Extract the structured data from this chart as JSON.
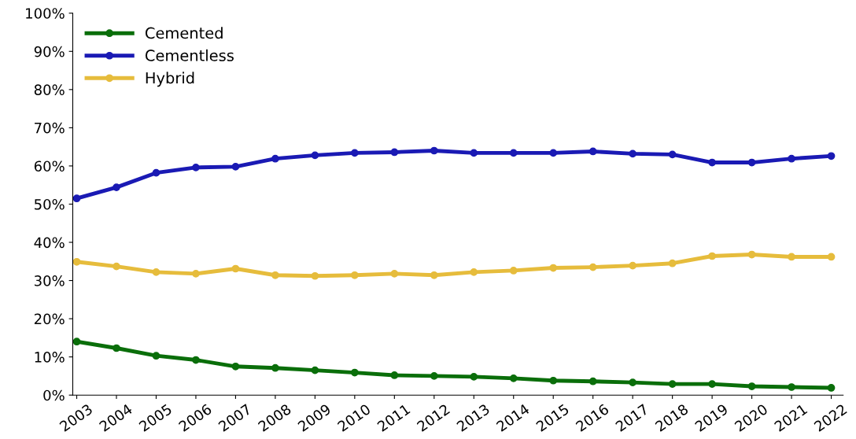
{
  "chart_data": {
    "type": "line",
    "categories": [
      "2003",
      "2004",
      "2005",
      "2006",
      "2007",
      "2008",
      "2009",
      "2010",
      "2011",
      "2012",
      "2013",
      "2014",
      "2015",
      "2016",
      "2017",
      "2018",
      "2019",
      "2020",
      "2021",
      "2022"
    ],
    "series": [
      {
        "name": "Cemented",
        "color": "#0a6e0a",
        "values": [
          14,
          12.3,
          10.3,
          9.2,
          7.5,
          7.1,
          6.5,
          5.9,
          5.2,
          5.0,
          4.8,
          4.4,
          3.8,
          3.6,
          3.3,
          2.9,
          2.9,
          2.3,
          2.1,
          1.9
        ]
      },
      {
        "name": "Cementless",
        "color": "#1a1ab4",
        "values": [
          51.5,
          54.4,
          58.2,
          59.6,
          59.8,
          61.9,
          62.8,
          63.4,
          63.6,
          64,
          63.4,
          63.4,
          63.4,
          63.8,
          63.2,
          63,
          60.9,
          60.9,
          61.9,
          62.6
        ]
      },
      {
        "name": "Hybrid",
        "color": "#e6bc3c",
        "values": [
          34.9,
          33.7,
          32.2,
          31.8,
          33.1,
          31.4,
          31.2,
          31.4,
          31.8,
          31.4,
          32.2,
          32.6,
          33.3,
          33.5,
          33.9,
          34.5,
          36.4,
          36.8,
          36.2,
          36.2
        ]
      }
    ],
    "ylim": [
      0,
      100
    ],
    "yticks": [
      {
        "value": 0,
        "label": "0%"
      },
      {
        "value": 10,
        "label": "10%"
      },
      {
        "value": 20,
        "label": "20%"
      },
      {
        "value": 30,
        "label": "30%"
      },
      {
        "value": 40,
        "label": "40%"
      },
      {
        "value": 50,
        "label": "50%"
      },
      {
        "value": 60,
        "label": "60%"
      },
      {
        "value": 70,
        "label": "70%"
      },
      {
        "value": 80,
        "label": "80%"
      },
      {
        "value": 90,
        "label": "90%"
      },
      {
        "value": 100,
        "label": "100%"
      }
    ],
    "grid": false,
    "legend": "top left",
    "marker": "circle",
    "line_style": "solid"
  }
}
